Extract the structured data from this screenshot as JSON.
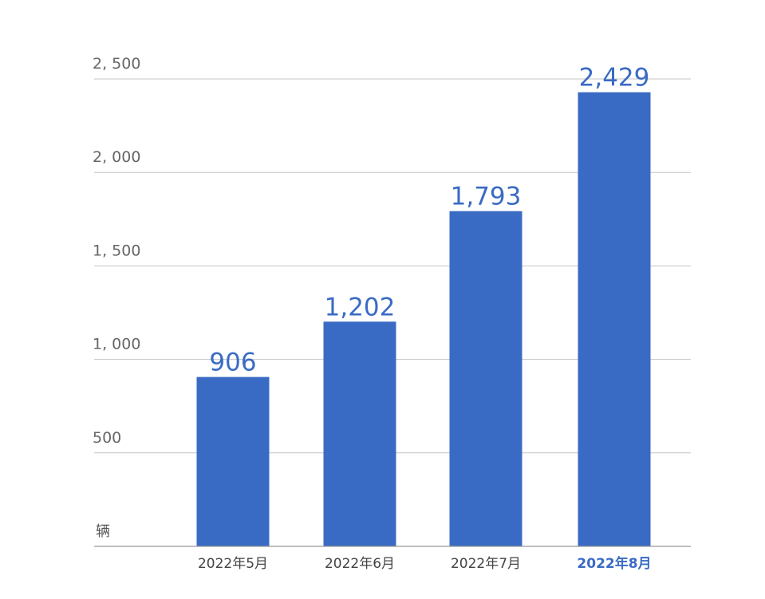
{
  "chart_data": {
    "type": "bar",
    "categories": [
      "2022年5月",
      "2022年6月",
      "2022年7月",
      "2022年8月"
    ],
    "values": [
      906,
      1202,
      1793,
      2429
    ],
    "data_labels": [
      "906",
      "1,202",
      "1,793",
      "2,429"
    ],
    "ytick_labels": [
      "500",
      "1, 000",
      "1, 500",
      "2, 000",
      "2, 500"
    ],
    "yticks": [
      500,
      1000,
      1500,
      2000,
      2500
    ],
    "ylabel": "辆",
    "ylim": [
      0,
      2500
    ],
    "grid": true,
    "highlight_category": "2022年8月",
    "colors": {
      "bar": "#3a6bc4",
      "data_label": "#3a6bc4",
      "highlight_label": "#3a6bc4"
    }
  }
}
